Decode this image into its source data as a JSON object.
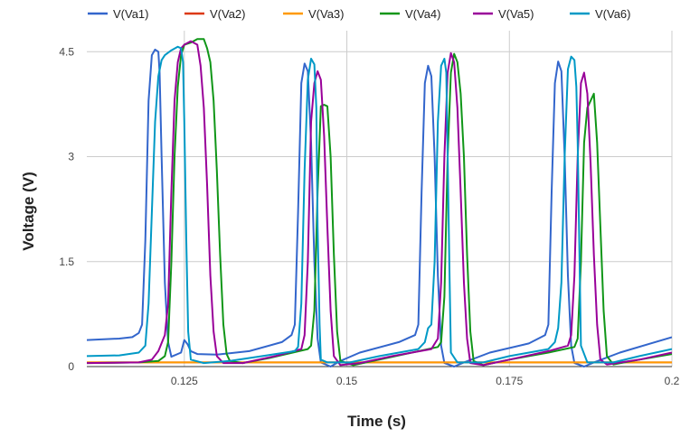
{
  "chart_data": {
    "type": "line",
    "title": "",
    "xlabel": "Time (s)",
    "ylabel": "Voltage (V)",
    "xlim": [
      0.11,
      0.2
    ],
    "ylim": [
      0,
      4.8
    ],
    "x_ticks": [
      0.125,
      0.15,
      0.175,
      0.2
    ],
    "x_tick_labels": [
      "0.125",
      "0.15",
      "0.175",
      "0.2"
    ],
    "y_ticks": [
      0,
      1.5,
      3,
      4.5
    ],
    "y_tick_labels": [
      "0",
      "1.5",
      "3",
      "4.5"
    ],
    "grid": true,
    "legend_position": "top",
    "series": [
      {
        "name": "V(Va1)",
        "color": "#3366cc",
        "points": [
          [
            0.11,
            0.38
          ],
          [
            0.115,
            0.4
          ],
          [
            0.117,
            0.42
          ],
          [
            0.118,
            0.48
          ],
          [
            0.1185,
            0.6
          ],
          [
            0.119,
            1.8
          ],
          [
            0.1195,
            3.8
          ],
          [
            0.12,
            4.45
          ],
          [
            0.1205,
            4.53
          ],
          [
            0.121,
            4.5
          ],
          [
            0.1212,
            4.2
          ],
          [
            0.1215,
            3.0
          ],
          [
            0.122,
            1.2
          ],
          [
            0.1225,
            0.35
          ],
          [
            0.123,
            0.14
          ],
          [
            0.1245,
            0.2
          ],
          [
            0.125,
            0.38
          ],
          [
            0.1255,
            0.32
          ],
          [
            0.126,
            0.22
          ],
          [
            0.127,
            0.18
          ],
          [
            0.13,
            0.17
          ],
          [
            0.135,
            0.22
          ],
          [
            0.14,
            0.35
          ],
          [
            0.1415,
            0.45
          ],
          [
            0.142,
            0.6
          ],
          [
            0.1425,
            2.2
          ],
          [
            0.143,
            4.05
          ],
          [
            0.1435,
            4.33
          ],
          [
            0.144,
            4.22
          ],
          [
            0.1445,
            3.2
          ],
          [
            0.145,
            1.5
          ],
          [
            0.1455,
            0.4
          ],
          [
            0.146,
            0.06
          ],
          [
            0.1475,
            0.0
          ],
          [
            0.149,
            0.08
          ],
          [
            0.152,
            0.2
          ],
          [
            0.158,
            0.35
          ],
          [
            0.1605,
            0.45
          ],
          [
            0.161,
            0.6
          ],
          [
            0.1615,
            2.5
          ],
          [
            0.162,
            4.05
          ],
          [
            0.1625,
            4.3
          ],
          [
            0.163,
            4.15
          ],
          [
            0.1635,
            3.0
          ],
          [
            0.164,
            1.3
          ],
          [
            0.1645,
            0.3
          ],
          [
            0.165,
            0.05
          ],
          [
            0.1665,
            0.0
          ],
          [
            0.168,
            0.06
          ],
          [
            0.172,
            0.2
          ],
          [
            0.178,
            0.33
          ],
          [
            0.1805,
            0.45
          ],
          [
            0.181,
            0.6
          ],
          [
            0.1815,
            2.5
          ],
          [
            0.182,
            4.05
          ],
          [
            0.1825,
            4.36
          ],
          [
            0.183,
            4.22
          ],
          [
            0.1835,
            3.0
          ],
          [
            0.184,
            1.3
          ],
          [
            0.1845,
            0.3
          ],
          [
            0.185,
            0.05
          ],
          [
            0.1865,
            0.0
          ],
          [
            0.188,
            0.06
          ],
          [
            0.192,
            0.2
          ],
          [
            0.2,
            0.42
          ]
        ]
      },
      {
        "name": "V(Va2)",
        "color": "#dc3912",
        "points": [
          [
            0.11,
            0.06
          ],
          [
            0.2,
            0.06
          ]
        ]
      },
      {
        "name": "V(Va3)",
        "color": "#ff9900",
        "points": [
          [
            0.11,
            0.06
          ],
          [
            0.2,
            0.06
          ]
        ]
      },
      {
        "name": "V(Va4)",
        "color": "#109618",
        "points": [
          [
            0.11,
            0.05
          ],
          [
            0.118,
            0.06
          ],
          [
            0.121,
            0.08
          ],
          [
            0.122,
            0.15
          ],
          [
            0.1225,
            0.35
          ],
          [
            0.123,
            1.5
          ],
          [
            0.1235,
            3.0
          ],
          [
            0.124,
            4.0
          ],
          [
            0.1245,
            4.45
          ],
          [
            0.125,
            4.6
          ],
          [
            0.126,
            4.63
          ],
          [
            0.127,
            4.68
          ],
          [
            0.128,
            4.68
          ],
          [
            0.1285,
            4.55
          ],
          [
            0.129,
            4.35
          ],
          [
            0.1295,
            3.8
          ],
          [
            0.13,
            2.8
          ],
          [
            0.1305,
            1.6
          ],
          [
            0.131,
            0.6
          ],
          [
            0.1315,
            0.18
          ],
          [
            0.132,
            0.08
          ],
          [
            0.134,
            0.05
          ],
          [
            0.138,
            0.12
          ],
          [
            0.144,
            0.25
          ],
          [
            0.1445,
            0.3
          ],
          [
            0.145,
            0.8
          ],
          [
            0.1455,
            2.5
          ],
          [
            0.146,
            3.72
          ],
          [
            0.1465,
            3.74
          ],
          [
            0.147,
            3.72
          ],
          [
            0.1475,
            3.0
          ],
          [
            0.148,
            1.6
          ],
          [
            0.1485,
            0.5
          ],
          [
            0.149,
            0.08
          ],
          [
            0.151,
            0.02
          ],
          [
            0.155,
            0.1
          ],
          [
            0.16,
            0.2
          ],
          [
            0.164,
            0.28
          ],
          [
            0.1645,
            0.35
          ],
          [
            0.165,
            1.0
          ],
          [
            0.1655,
            3.0
          ],
          [
            0.166,
            4.2
          ],
          [
            0.1665,
            4.47
          ],
          [
            0.167,
            4.35
          ],
          [
            0.1675,
            3.9
          ],
          [
            0.168,
            3.0
          ],
          [
            0.1685,
            1.6
          ],
          [
            0.169,
            0.5
          ],
          [
            0.1695,
            0.08
          ],
          [
            0.171,
            0.02
          ],
          [
            0.175,
            0.1
          ],
          [
            0.181,
            0.2
          ],
          [
            0.185,
            0.28
          ],
          [
            0.1855,
            0.4
          ],
          [
            0.186,
            1.5
          ],
          [
            0.1865,
            3.2
          ],
          [
            0.187,
            3.7
          ],
          [
            0.188,
            3.9
          ],
          [
            0.1885,
            3.2
          ],
          [
            0.189,
            2.0
          ],
          [
            0.1895,
            0.8
          ],
          [
            0.19,
            0.15
          ],
          [
            0.191,
            0.03
          ],
          [
            0.195,
            0.1
          ],
          [
            0.2,
            0.18
          ]
        ]
      },
      {
        "name": "V(Va5)",
        "color": "#990099",
        "points": [
          [
            0.11,
            0.05
          ],
          [
            0.118,
            0.06
          ],
          [
            0.12,
            0.1
          ],
          [
            0.121,
            0.22
          ],
          [
            0.122,
            0.45
          ],
          [
            0.1225,
            0.9
          ],
          [
            0.123,
            2.5
          ],
          [
            0.1235,
            3.8
          ],
          [
            0.124,
            4.35
          ],
          [
            0.1245,
            4.55
          ],
          [
            0.125,
            4.6
          ],
          [
            0.126,
            4.65
          ],
          [
            0.127,
            4.6
          ],
          [
            0.1275,
            4.3
          ],
          [
            0.128,
            3.7
          ],
          [
            0.1285,
            2.6
          ],
          [
            0.129,
            1.3
          ],
          [
            0.1295,
            0.5
          ],
          [
            0.13,
            0.15
          ],
          [
            0.131,
            0.05
          ],
          [
            0.134,
            0.05
          ],
          [
            0.139,
            0.15
          ],
          [
            0.143,
            0.25
          ],
          [
            0.1435,
            0.45
          ],
          [
            0.144,
            1.5
          ],
          [
            0.1445,
            3.5
          ],
          [
            0.145,
            4.05
          ],
          [
            0.1455,
            4.22
          ],
          [
            0.146,
            4.1
          ],
          [
            0.1465,
            3.3
          ],
          [
            0.147,
            2.0
          ],
          [
            0.1475,
            0.8
          ],
          [
            0.148,
            0.15
          ],
          [
            0.149,
            0.02
          ],
          [
            0.152,
            0.05
          ],
          [
            0.157,
            0.15
          ],
          [
            0.163,
            0.25
          ],
          [
            0.164,
            0.4
          ],
          [
            0.1645,
            1.2
          ],
          [
            0.165,
            3.0
          ],
          [
            0.1655,
            4.2
          ],
          [
            0.166,
            4.48
          ],
          [
            0.1665,
            4.35
          ],
          [
            0.167,
            3.7
          ],
          [
            0.1675,
            2.5
          ],
          [
            0.168,
            1.2
          ],
          [
            0.1685,
            0.4
          ],
          [
            0.169,
            0.05
          ],
          [
            0.171,
            0.02
          ],
          [
            0.175,
            0.1
          ],
          [
            0.181,
            0.22
          ],
          [
            0.184,
            0.3
          ],
          [
            0.1845,
            0.45
          ],
          [
            0.185,
            1.3
          ],
          [
            0.1855,
            3.0
          ],
          [
            0.186,
            4.05
          ],
          [
            0.1865,
            4.2
          ],
          [
            0.187,
            3.9
          ],
          [
            0.1875,
            2.9
          ],
          [
            0.188,
            1.6
          ],
          [
            0.1885,
            0.6
          ],
          [
            0.189,
            0.1
          ],
          [
            0.19,
            0.03
          ],
          [
            0.195,
            0.1
          ],
          [
            0.2,
            0.2
          ]
        ]
      },
      {
        "name": "V(Va6)",
        "color": "#0099c6",
        "points": [
          [
            0.11,
            0.15
          ],
          [
            0.115,
            0.16
          ],
          [
            0.118,
            0.2
          ],
          [
            0.119,
            0.3
          ],
          [
            0.1195,
            0.9
          ],
          [
            0.12,
            2.2
          ],
          [
            0.1205,
            3.5
          ],
          [
            0.121,
            4.15
          ],
          [
            0.1215,
            4.38
          ],
          [
            0.122,
            4.45
          ],
          [
            0.123,
            4.52
          ],
          [
            0.124,
            4.57
          ],
          [
            0.1245,
            4.55
          ],
          [
            0.1248,
            4.35
          ],
          [
            0.125,
            3.5
          ],
          [
            0.1253,
            1.8
          ],
          [
            0.1256,
            0.5
          ],
          [
            0.126,
            0.1
          ],
          [
            0.128,
            0.05
          ],
          [
            0.132,
            0.08
          ],
          [
            0.137,
            0.15
          ],
          [
            0.142,
            0.22
          ],
          [
            0.1425,
            0.28
          ],
          [
            0.143,
            0.9
          ],
          [
            0.1435,
            2.8
          ],
          [
            0.144,
            4.1
          ],
          [
            0.1445,
            4.4
          ],
          [
            0.145,
            4.32
          ],
          [
            0.1453,
            3.7
          ],
          [
            0.1455,
            2.0
          ],
          [
            0.1458,
            0.6
          ],
          [
            0.146,
            0.1
          ],
          [
            0.147,
            0.06
          ],
          [
            0.1505,
            0.06
          ],
          [
            0.155,
            0.15
          ],
          [
            0.161,
            0.25
          ],
          [
            0.162,
            0.35
          ],
          [
            0.1625,
            0.55
          ],
          [
            0.163,
            0.6
          ],
          [
            0.1635,
            1.5
          ],
          [
            0.164,
            3.5
          ],
          [
            0.1645,
            4.3
          ],
          [
            0.165,
            4.4
          ],
          [
            0.1653,
            4.2
          ],
          [
            0.1655,
            3.0
          ],
          [
            0.1658,
            1.3
          ],
          [
            0.166,
            0.2
          ],
          [
            0.167,
            0.06
          ],
          [
            0.171,
            0.06
          ],
          [
            0.175,
            0.15
          ],
          [
            0.181,
            0.25
          ],
          [
            0.182,
            0.35
          ],
          [
            0.1825,
            0.55
          ],
          [
            0.183,
            1.2
          ],
          [
            0.1835,
            3.0
          ],
          [
            0.184,
            4.25
          ],
          [
            0.1845,
            4.43
          ],
          [
            0.185,
            4.38
          ],
          [
            0.1853,
            4.0
          ],
          [
            0.1855,
            3.2
          ],
          [
            0.1858,
            1.5
          ],
          [
            0.186,
            0.3
          ],
          [
            0.187,
            0.06
          ],
          [
            0.191,
            0.06
          ],
          [
            0.195,
            0.15
          ],
          [
            0.2,
            0.25
          ]
        ]
      }
    ]
  }
}
